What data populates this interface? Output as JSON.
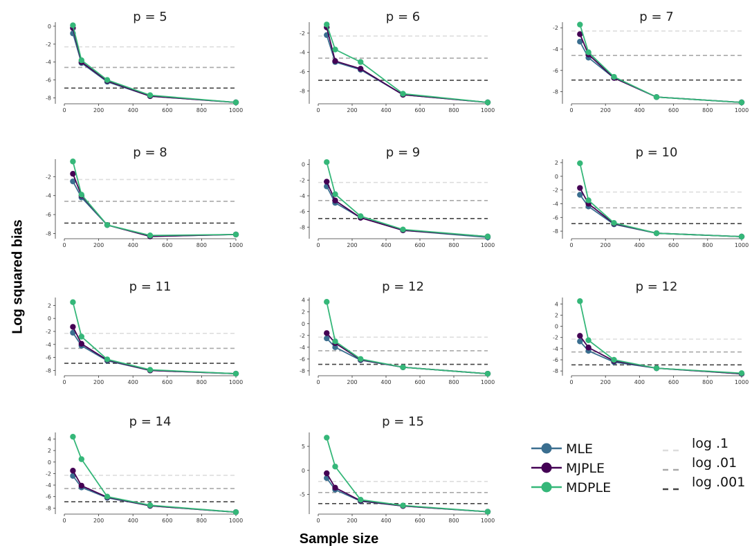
{
  "figure": {
    "ylabel": "Log squared bias",
    "xlabel": "Sample size"
  },
  "legend": {
    "series": [
      {
        "name": "MLE",
        "color": "#3a6e8f"
      },
      {
        "name": "MJPLE",
        "color": "#440154"
      },
      {
        "name": "MDPLE",
        "color": "#35b779"
      }
    ],
    "lines": [
      {
        "name": "log .1",
        "color": "#dddddd"
      },
      {
        "name": "log .01",
        "color": "#a9a9a9"
      },
      {
        "name": "log .001",
        "color": "#444444"
      }
    ]
  },
  "chart_data": [
    {
      "type": "line",
      "title": "p = 5",
      "ylim": [
        -8.5,
        0.3
      ],
      "yticks": [
        0,
        -2,
        -4,
        -6,
        -8
      ],
      "xticks": [
        0,
        200,
        400,
        600,
        800,
        1000
      ],
      "x": [
        50,
        100,
        250,
        500,
        1000
      ],
      "series": [
        {
          "name": "MLE",
          "values": [
            -0.8,
            -4.1,
            -6.2,
            -7.8,
            -8.5
          ]
        },
        {
          "name": "MJPLE",
          "values": [
            -0.2,
            -4.0,
            -6.1,
            -7.8,
            -8.5
          ]
        },
        {
          "name": "MDPLE",
          "values": [
            0.1,
            -3.8,
            -6.0,
            -7.7,
            -8.5
          ]
        }
      ],
      "hlines": [
        -2.3,
        -4.6,
        -6.9
      ]
    },
    {
      "type": "line",
      "title": "p = 6",
      "ylim": [
        -9.2,
        -1.0
      ],
      "yticks": [
        -2,
        -4,
        -6,
        -8
      ],
      "xticks": [
        0,
        200,
        400,
        600,
        800,
        1000
      ],
      "x": [
        50,
        100,
        250,
        500,
        1000
      ],
      "series": [
        {
          "name": "MLE",
          "values": [
            -2.2,
            -5.0,
            -5.8,
            -8.4,
            -9.2
          ]
        },
        {
          "name": "MJPLE",
          "values": [
            -1.4,
            -4.9,
            -5.7,
            -8.4,
            -9.2
          ]
        },
        {
          "name": "MDPLE",
          "values": [
            -1.1,
            -3.7,
            -5.0,
            -8.3,
            -9.2
          ]
        }
      ],
      "hlines": [
        -2.3,
        -4.6,
        -6.9
      ]
    },
    {
      "type": "line",
      "title": "p = 7",
      "ylim": [
        -9.0,
        -1.6
      ],
      "yticks": [
        -2,
        -4,
        -6,
        -8
      ],
      "xticks": [
        0,
        200,
        400,
        600,
        800,
        1000
      ],
      "x": [
        50,
        100,
        250,
        500,
        1000
      ],
      "series": [
        {
          "name": "MLE",
          "values": [
            -3.3,
            -4.8,
            -6.7,
            -8.5,
            -9.0
          ]
        },
        {
          "name": "MJPLE",
          "values": [
            -2.6,
            -4.5,
            -6.7,
            -8.5,
            -9.0
          ]
        },
        {
          "name": "MDPLE",
          "values": [
            -1.7,
            -4.3,
            -6.6,
            -8.5,
            -9.0
          ]
        }
      ],
      "hlines": [
        -2.3,
        -4.6,
        -6.9
      ]
    },
    {
      "type": "line",
      "title": "p = 8",
      "ylim": [
        -8.4,
        -0.3
      ],
      "yticks": [
        -2,
        -4,
        -6,
        -8
      ],
      "xticks": [
        0,
        200,
        400,
        600,
        800,
        1000
      ],
      "x": [
        50,
        100,
        250,
        500,
        1000
      ],
      "series": [
        {
          "name": "MLE",
          "values": [
            -2.5,
            -4.2,
            -7.1,
            -8.3,
            -8.1
          ]
        },
        {
          "name": "MJPLE",
          "values": [
            -1.7,
            -4.0,
            -7.1,
            -8.3,
            -8.1
          ]
        },
        {
          "name": "MDPLE",
          "values": [
            -0.4,
            -3.9,
            -7.1,
            -8.2,
            -8.1
          ]
        }
      ],
      "hlines": [
        -2.3,
        -4.6,
        -6.9
      ]
    },
    {
      "type": "line",
      "title": "p = 9",
      "ylim": [
        -9.3,
        0.5
      ],
      "yticks": [
        0,
        -2,
        -4,
        -6,
        -8
      ],
      "xticks": [
        0,
        200,
        400,
        600,
        800,
        1000
      ],
      "x": [
        50,
        100,
        250,
        500,
        1000
      ],
      "series": [
        {
          "name": "MLE",
          "values": [
            -2.8,
            -4.9,
            -6.8,
            -8.4,
            -9.3
          ]
        },
        {
          "name": "MJPLE",
          "values": [
            -2.2,
            -4.6,
            -6.8,
            -8.4,
            -9.2
          ]
        },
        {
          "name": "MDPLE",
          "values": [
            0.3,
            -3.8,
            -6.6,
            -8.3,
            -9.2
          ]
        }
      ],
      "hlines": [
        -2.3,
        -4.6,
        -6.9
      ]
    },
    {
      "type": "line",
      "title": "p = 10",
      "ylim": [
        -8.9,
        2.3
      ],
      "yticks": [
        2,
        0,
        -2,
        -4,
        -6,
        -8
      ],
      "xticks": [
        0,
        200,
        400,
        600,
        800,
        1000
      ],
      "x": [
        50,
        100,
        250,
        500,
        1000
      ],
      "series": [
        {
          "name": "MLE",
          "values": [
            -2.7,
            -4.4,
            -7.0,
            -8.3,
            -8.8
          ]
        },
        {
          "name": "MJPLE",
          "values": [
            -1.7,
            -4.0,
            -6.9,
            -8.3,
            -8.8
          ]
        },
        {
          "name": "MDPLE",
          "values": [
            1.9,
            -3.5,
            -6.8,
            -8.3,
            -8.8
          ]
        }
      ],
      "hlines": [
        -2.3,
        -4.6,
        -6.9
      ]
    },
    {
      "type": "line",
      "title": "p = 11",
      "ylim": [
        -8.6,
        3.0
      ],
      "yticks": [
        2,
        0,
        -2,
        -4,
        -6,
        -8
      ],
      "xticks": [
        0,
        200,
        400,
        600,
        800,
        1000
      ],
      "x": [
        50,
        100,
        250,
        500,
        1000
      ],
      "series": [
        {
          "name": "MLE",
          "values": [
            -2.2,
            -4.2,
            -6.5,
            -8.0,
            -8.5
          ]
        },
        {
          "name": "MJPLE",
          "values": [
            -1.3,
            -3.9,
            -6.4,
            -8.0,
            -8.5
          ]
        },
        {
          "name": "MDPLE",
          "values": [
            2.5,
            -2.8,
            -6.3,
            -7.9,
            -8.5
          ]
        }
      ],
      "hlines": [
        -2.3,
        -4.6,
        -6.9
      ]
    },
    {
      "type": "line",
      "title": "p = 12",
      "ylim": [
        -8.6,
        4.2
      ],
      "yticks": [
        4,
        2,
        0,
        -2,
        -4,
        -6,
        -8
      ],
      "xticks": [
        0,
        200,
        400,
        600,
        800,
        1000
      ],
      "x": [
        50,
        100,
        250,
        500,
        1000
      ],
      "series": [
        {
          "name": "MLE",
          "values": [
            -2.5,
            -4.0,
            -6.2,
            -7.4,
            -8.5
          ]
        },
        {
          "name": "MJPLE",
          "values": [
            -1.6,
            -3.3,
            -6.1,
            -7.4,
            -8.5
          ]
        },
        {
          "name": "MDPLE",
          "values": [
            3.7,
            -3.0,
            -6.0,
            -7.4,
            -8.5
          ]
        }
      ],
      "hlines": [
        -2.3,
        -4.6,
        -6.9
      ]
    },
    {
      "type": "line",
      "title": "p = 12",
      "ylim": [
        -8.6,
        4.9
      ],
      "yticks": [
        4,
        2,
        0,
        -2,
        -4,
        -6,
        -8
      ],
      "xticks": [
        0,
        200,
        400,
        600,
        800,
        1000
      ],
      "x": [
        50,
        100,
        250,
        500,
        1000
      ],
      "series": [
        {
          "name": "MLE",
          "values": [
            -2.7,
            -4.4,
            -6.4,
            -7.5,
            -8.5
          ]
        },
        {
          "name": "MJPLE",
          "values": [
            -1.7,
            -3.8,
            -6.2,
            -7.5,
            -8.5
          ]
        },
        {
          "name": "MDPLE",
          "values": [
            4.5,
            -2.5,
            -6.0,
            -7.5,
            -8.4
          ]
        }
      ],
      "hlines": [
        -2.3,
        -4.6,
        -6.9
      ]
    },
    {
      "type": "line",
      "title": "p = 14",
      "ylim": [
        -8.8,
        4.9
      ],
      "yticks": [
        4,
        2,
        0,
        -2,
        -4,
        -6,
        -8
      ],
      "xticks": [
        0,
        200,
        400,
        600,
        800,
        1000
      ],
      "x": [
        50,
        100,
        250,
        500,
        1000
      ],
      "series": [
        {
          "name": "MLE",
          "values": [
            -2.4,
            -4.4,
            -6.2,
            -7.6,
            -8.7
          ]
        },
        {
          "name": "MJPLE",
          "values": [
            -1.5,
            -4.1,
            -6.1,
            -7.6,
            -8.7
          ]
        },
        {
          "name": "MDPLE",
          "values": [
            4.4,
            0.5,
            -6.0,
            -7.5,
            -8.7
          ]
        }
      ],
      "hlines": [
        -2.3,
        -4.6,
        -6.9
      ]
    },
    {
      "type": "line",
      "title": "p = 15",
      "ylim": [
        -8.8,
        7.6
      ],
      "yticks": [
        5,
        0,
        -5
      ],
      "xticks": [
        0,
        200,
        400,
        600,
        800,
        1000
      ],
      "x": [
        50,
        100,
        250,
        500,
        1000
      ],
      "series": [
        {
          "name": "MLE",
          "values": [
            -1.6,
            -4.0,
            -6.4,
            -7.4,
            -8.6
          ]
        },
        {
          "name": "MJPLE",
          "values": [
            -0.6,
            -3.6,
            -6.3,
            -7.4,
            -8.6
          ]
        },
        {
          "name": "MDPLE",
          "values": [
            6.8,
            0.8,
            -6.1,
            -7.3,
            -8.6
          ]
        }
      ],
      "hlines": [
        -2.3,
        -4.6,
        -6.9
      ]
    }
  ]
}
